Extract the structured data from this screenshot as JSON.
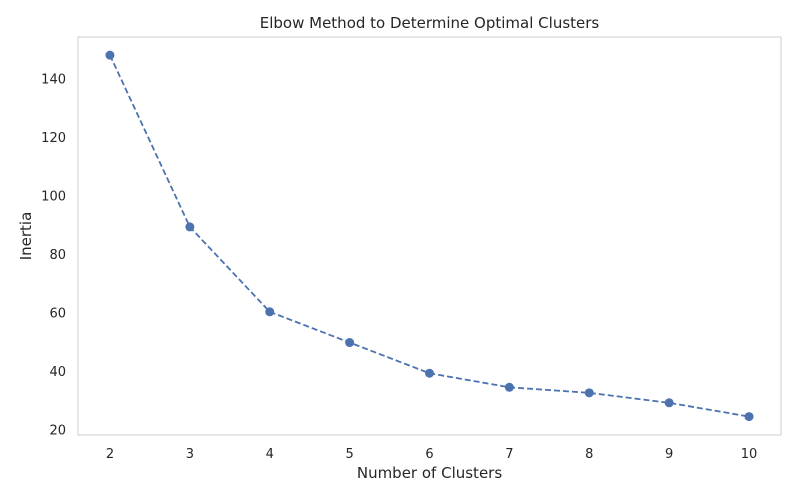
{
  "chart_data": {
    "type": "line",
    "title": "Elbow Method to Determine Optimal Clusters",
    "xlabel": "Number of Clusters",
    "ylabel": "Inertia",
    "x": [
      2,
      3,
      4,
      5,
      6,
      7,
      8,
      9,
      10
    ],
    "series": [
      {
        "values": [
          148,
          89.3,
          60.3,
          49.8,
          39.3,
          34.5,
          32.6,
          29.2,
          24.5
        ]
      }
    ],
    "xticks": [
      "2",
      "3",
      "4",
      "5",
      "6",
      "7",
      "8",
      "9",
      "10"
    ],
    "yticks": [
      "20",
      "40",
      "60",
      "80",
      "100",
      "120",
      "140"
    ],
    "xlim": [
      1.6,
      10.4
    ],
    "ylim": [
      18.2,
      154.2
    ],
    "grid": false,
    "line_style": "dashed",
    "marker": "circle",
    "colors": {
      "line": "#4c72b0",
      "axes": "#cccccc",
      "text": "#262626"
    }
  }
}
